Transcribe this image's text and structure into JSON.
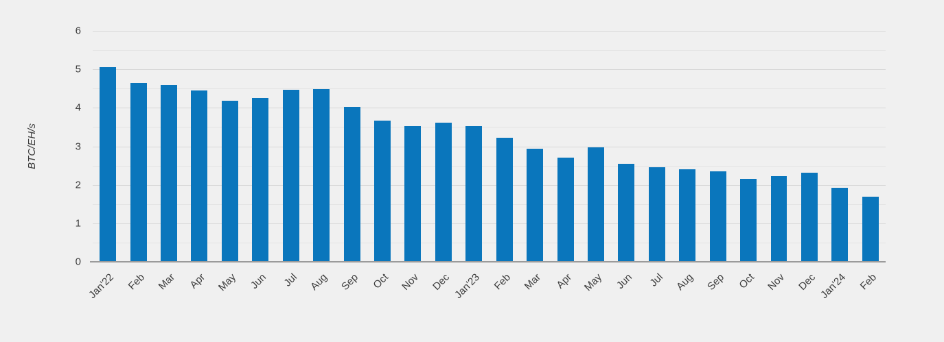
{
  "chart_data": {
    "type": "bar",
    "title": "",
    "xlabel": "",
    "ylabel": "BTC/EH/s",
    "categories": [
      "Jan'22",
      "Feb",
      "Mar",
      "Apr",
      "May",
      "Jun",
      "Jul",
      "Aug",
      "Sep",
      "Oct",
      "Nov",
      "Dec",
      "Jan'23",
      "Feb",
      "Mar",
      "Apr",
      "May",
      "Jun",
      "Jul",
      "Aug",
      "Sep",
      "Oct",
      "Nov",
      "Dec",
      "Jan'24",
      "Feb"
    ],
    "values": [
      5.05,
      4.65,
      4.6,
      4.45,
      4.18,
      4.25,
      4.47,
      4.48,
      4.03,
      3.67,
      3.52,
      3.62,
      3.52,
      3.22,
      2.93,
      2.7,
      2.98,
      2.55,
      2.45,
      2.4,
      2.35,
      2.15,
      2.22,
      2.32,
      1.93,
      1.7
    ],
    "ylim": [
      0,
      6
    ],
    "y_major_step": 1,
    "y_minor_step": 0.5,
    "grid": true,
    "legend": "none",
    "colors": {
      "bar": "#0a76bc",
      "background": "#f0f0f0",
      "grid_major": "#d7d7d7",
      "grid_minor": "#e4e4e4",
      "axis": "#9b9b9b",
      "text": "#3d3d3d"
    }
  }
}
